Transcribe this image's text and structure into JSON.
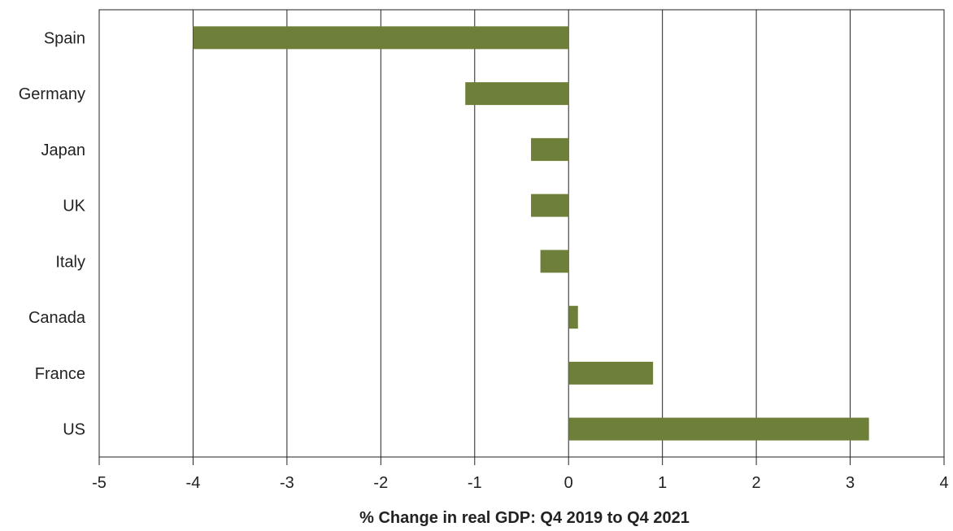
{
  "chart_data": {
    "type": "bar",
    "orientation": "horizontal",
    "categories": [
      "Spain",
      "Germany",
      "Japan",
      "UK",
      "Italy",
      "Canada",
      "France",
      "US"
    ],
    "values": [
      -4.0,
      -1.1,
      -0.4,
      -0.4,
      -0.3,
      0.1,
      0.9,
      3.2
    ],
    "title": "",
    "xlabel": "% Change in real GDP: Q4 2019 to Q4 2021",
    "ylabel": "",
    "xlim": [
      -5,
      4
    ],
    "xticks": [
      "-5",
      "-4",
      "-3",
      "-2",
      "-1",
      "0",
      "1",
      "2",
      "3",
      "4"
    ],
    "grid": "vertical",
    "legend": "none",
    "bar_color": "#6e7f3a",
    "grid_color": "#222222"
  }
}
